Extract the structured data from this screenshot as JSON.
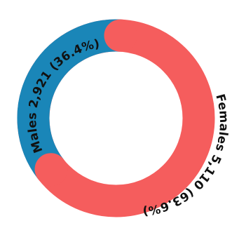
{
  "chart_data": {
    "type": "pie",
    "style": "donut",
    "title": "",
    "slices": [
      {
        "label": "Males",
        "value": 2921,
        "value_text": "2,921",
        "percent_text": "36.4%",
        "color": "#1a86b8"
      },
      {
        "label": "Females",
        "value": 5110,
        "value_text": "5,110",
        "percent_text": "63.6%",
        "color": "#f55d5d"
      }
    ]
  }
}
